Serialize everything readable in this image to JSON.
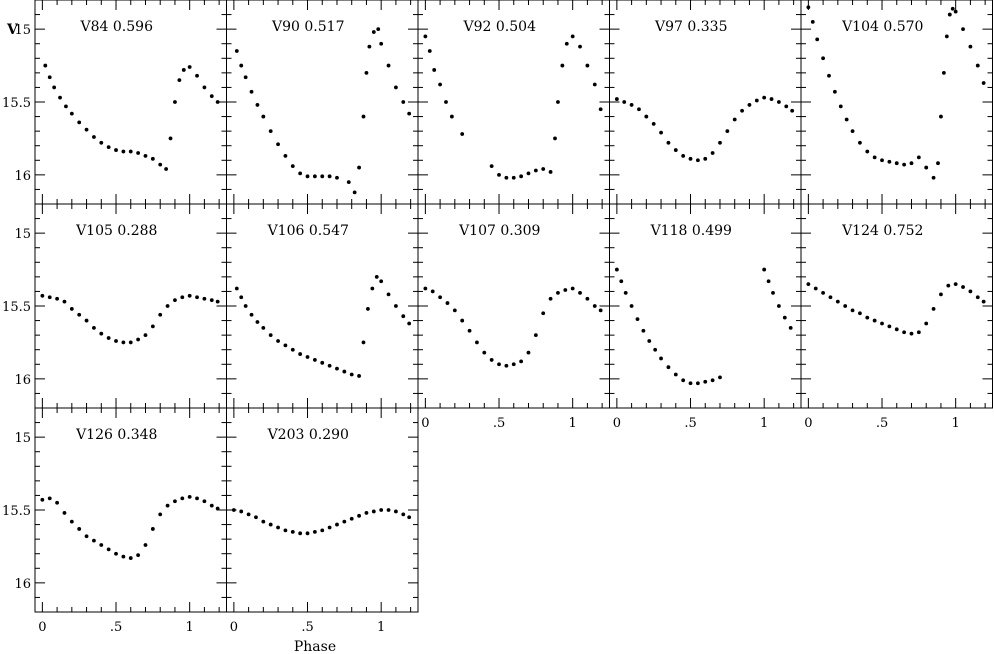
{
  "figure": {
    "ylabel": "V",
    "xlabel": "Phase"
  },
  "axes": {
    "x_ticks": [
      "0",
      ".5",
      "1"
    ],
    "y_ticks": [
      "15",
      "15.5",
      "16"
    ],
    "xlim": [
      -0.05,
      1.25
    ],
    "ylim": [
      16.2,
      14.8
    ],
    "y_inverted": true
  },
  "chart_data": [
    {
      "type": "scatter",
      "title": "V84 0.596",
      "x": [
        0.02,
        0.05,
        0.08,
        0.12,
        0.16,
        0.2,
        0.25,
        0.3,
        0.35,
        0.4,
        0.45,
        0.5,
        0.55,
        0.6,
        0.65,
        0.7,
        0.75,
        0.8,
        0.84,
        0.87,
        0.9,
        0.93,
        0.96,
        1.0,
        1.05,
        1.1,
        1.15,
        1.19
      ],
      "y": [
        15.25,
        15.33,
        15.4,
        15.47,
        15.53,
        15.58,
        15.64,
        15.69,
        15.74,
        15.78,
        15.81,
        15.83,
        15.84,
        15.84,
        15.85,
        15.87,
        15.89,
        15.93,
        15.96,
        15.75,
        15.5,
        15.35,
        15.28,
        15.26,
        15.32,
        15.4,
        15.46,
        15.5
      ]
    },
    {
      "type": "scatter",
      "title": "V90 0.517",
      "x": [
        0.02,
        0.05,
        0.08,
        0.12,
        0.16,
        0.2,
        0.25,
        0.3,
        0.35,
        0.4,
        0.45,
        0.5,
        0.55,
        0.6,
        0.65,
        0.7,
        0.78,
        0.82,
        0.85,
        0.88,
        0.9,
        0.92,
        0.95,
        0.98,
        1.0,
        1.05,
        1.1,
        1.15,
        1.19
      ],
      "y": [
        15.15,
        15.25,
        15.33,
        15.43,
        15.52,
        15.6,
        15.7,
        15.79,
        15.87,
        15.94,
        15.99,
        16.01,
        16.01,
        16.01,
        16.01,
        16.02,
        16.05,
        16.12,
        15.95,
        15.6,
        15.3,
        15.12,
        15.02,
        15.0,
        15.1,
        15.25,
        15.4,
        15.5,
        15.58
      ]
    },
    {
      "type": "scatter",
      "title": "V92 0.504",
      "x": [
        0.0,
        0.03,
        0.06,
        0.1,
        0.14,
        0.18,
        0.25,
        0.45,
        0.5,
        0.55,
        0.6,
        0.65,
        0.7,
        0.75,
        0.8,
        0.85,
        0.88,
        0.9,
        0.93,
        0.96,
        1.0,
        1.05,
        1.1,
        1.15,
        1.19
      ],
      "y": [
        15.05,
        15.15,
        15.28,
        15.38,
        15.5,
        15.6,
        15.72,
        15.94,
        16.0,
        16.02,
        16.02,
        16.01,
        15.99,
        15.97,
        15.96,
        15.98,
        15.75,
        15.5,
        15.25,
        15.1,
        15.05,
        15.12,
        15.25,
        15.38,
        15.55
      ]
    },
    {
      "type": "scatter",
      "title": "V97 0.335",
      "x": [
        0.0,
        0.05,
        0.1,
        0.15,
        0.2,
        0.25,
        0.3,
        0.35,
        0.4,
        0.45,
        0.5,
        0.55,
        0.6,
        0.65,
        0.7,
        0.75,
        0.8,
        0.85,
        0.9,
        0.95,
        1.0,
        1.05,
        1.1,
        1.15,
        1.19
      ],
      "y": [
        15.48,
        15.5,
        15.52,
        15.55,
        15.6,
        15.65,
        15.71,
        15.78,
        15.83,
        15.87,
        15.89,
        15.9,
        15.89,
        15.85,
        15.78,
        15.7,
        15.62,
        15.56,
        15.52,
        15.49,
        15.47,
        15.48,
        15.5,
        15.53,
        15.56
      ]
    },
    {
      "type": "scatter",
      "title": "V104 0.570",
      "x": [
        0.0,
        0.03,
        0.06,
        0.1,
        0.14,
        0.18,
        0.22,
        0.26,
        0.3,
        0.35,
        0.4,
        0.45,
        0.5,
        0.55,
        0.6,
        0.65,
        0.7,
        0.75,
        0.8,
        0.85,
        0.88,
        0.9,
        0.92,
        0.94,
        0.96,
        0.98,
        1.0,
        1.05,
        1.1,
        1.15,
        1.19
      ],
      "y": [
        14.85,
        14.95,
        15.07,
        15.2,
        15.32,
        15.43,
        15.53,
        15.62,
        15.7,
        15.78,
        15.84,
        15.88,
        15.9,
        15.91,
        15.92,
        15.93,
        15.92,
        15.88,
        15.95,
        16.02,
        15.92,
        15.6,
        15.3,
        15.05,
        14.9,
        14.86,
        14.88,
        15.0,
        15.12,
        15.25,
        15.37
      ]
    },
    {
      "type": "scatter",
      "title": "V105 0.288",
      "x": [
        0.0,
        0.05,
        0.1,
        0.15,
        0.2,
        0.25,
        0.3,
        0.35,
        0.4,
        0.45,
        0.5,
        0.55,
        0.6,
        0.65,
        0.7,
        0.75,
        0.8,
        0.85,
        0.9,
        0.95,
        1.0,
        1.05,
        1.1,
        1.15,
        1.19
      ],
      "y": [
        15.43,
        15.44,
        15.45,
        15.47,
        15.52,
        15.56,
        15.6,
        15.65,
        15.69,
        15.72,
        15.74,
        15.75,
        15.75,
        15.73,
        15.7,
        15.64,
        15.56,
        15.5,
        15.46,
        15.44,
        15.43,
        15.44,
        15.45,
        15.46,
        15.47
      ]
    },
    {
      "type": "scatter",
      "title": "V106 0.547",
      "x": [
        0.02,
        0.05,
        0.08,
        0.12,
        0.16,
        0.2,
        0.25,
        0.3,
        0.35,
        0.4,
        0.45,
        0.5,
        0.55,
        0.6,
        0.65,
        0.7,
        0.75,
        0.8,
        0.85,
        0.88,
        0.91,
        0.94,
        0.97,
        1.0,
        1.05,
        1.1,
        1.15,
        1.19
      ],
      "y": [
        15.38,
        15.44,
        15.5,
        15.56,
        15.61,
        15.65,
        15.7,
        15.74,
        15.77,
        15.8,
        15.83,
        15.85,
        15.87,
        15.89,
        15.91,
        15.93,
        15.95,
        15.97,
        15.98,
        15.75,
        15.52,
        15.38,
        15.3,
        15.33,
        15.42,
        15.5,
        15.57,
        15.62
      ]
    },
    {
      "type": "scatter",
      "title": "V107 0.309",
      "x": [
        0.0,
        0.05,
        0.1,
        0.15,
        0.2,
        0.25,
        0.3,
        0.35,
        0.4,
        0.45,
        0.5,
        0.55,
        0.6,
        0.65,
        0.7,
        0.75,
        0.8,
        0.85,
        0.9,
        0.95,
        1.0,
        1.05,
        1.1,
        1.15,
        1.19
      ],
      "y": [
        15.38,
        15.4,
        15.44,
        15.48,
        15.53,
        15.6,
        15.67,
        15.75,
        15.82,
        15.87,
        15.9,
        15.91,
        15.9,
        15.88,
        15.82,
        15.7,
        15.55,
        15.45,
        15.41,
        15.39,
        15.38,
        15.41,
        15.45,
        15.5,
        15.53
      ]
    },
    {
      "type": "scatter",
      "title": "V118 0.499",
      "x": [
        0.0,
        0.03,
        0.06,
        0.1,
        0.14,
        0.18,
        0.22,
        0.26,
        0.3,
        0.35,
        0.4,
        0.45,
        0.5,
        0.55,
        0.6,
        0.65,
        0.7,
        1.0,
        1.03,
        1.06,
        1.1,
        1.14,
        1.18
      ],
      "y": [
        15.25,
        15.33,
        15.41,
        15.5,
        15.59,
        15.67,
        15.74,
        15.8,
        15.86,
        15.92,
        15.97,
        16.01,
        16.03,
        16.03,
        16.02,
        16.01,
        15.99,
        15.25,
        15.33,
        15.41,
        15.5,
        15.58,
        15.65
      ]
    },
    {
      "type": "scatter",
      "title": "V124 0.752",
      "x": [
        0.0,
        0.05,
        0.1,
        0.15,
        0.2,
        0.25,
        0.3,
        0.35,
        0.4,
        0.45,
        0.5,
        0.55,
        0.6,
        0.65,
        0.7,
        0.75,
        0.8,
        0.85,
        0.9,
        0.95,
        1.0,
        1.05,
        1.1,
        1.15,
        1.19
      ],
      "y": [
        15.35,
        15.38,
        15.41,
        15.44,
        15.47,
        15.5,
        15.53,
        15.55,
        15.58,
        15.6,
        15.62,
        15.64,
        15.66,
        15.68,
        15.69,
        15.68,
        15.62,
        15.52,
        15.42,
        15.36,
        15.35,
        15.37,
        15.4,
        15.44,
        15.47
      ]
    },
    {
      "type": "scatter",
      "title": "V126 0.348",
      "x": [
        0.0,
        0.05,
        0.1,
        0.15,
        0.2,
        0.25,
        0.3,
        0.35,
        0.4,
        0.45,
        0.5,
        0.55,
        0.6,
        0.65,
        0.7,
        0.75,
        0.8,
        0.85,
        0.9,
        0.95,
        1.0,
        1.05,
        1.1,
        1.15,
        1.19
      ],
      "y": [
        15.43,
        15.42,
        15.45,
        15.52,
        15.58,
        15.63,
        15.68,
        15.71,
        15.74,
        15.77,
        15.8,
        15.82,
        15.83,
        15.81,
        15.74,
        15.63,
        15.53,
        15.47,
        15.44,
        15.42,
        15.41,
        15.42,
        15.44,
        15.47,
        15.49
      ]
    },
    {
      "type": "scatter",
      "title": "V203 0.290",
      "x": [
        0.0,
        0.05,
        0.1,
        0.15,
        0.2,
        0.25,
        0.3,
        0.35,
        0.4,
        0.45,
        0.5,
        0.55,
        0.6,
        0.65,
        0.7,
        0.75,
        0.8,
        0.85,
        0.9,
        0.95,
        1.0,
        1.05,
        1.1,
        1.15,
        1.19
      ],
      "y": [
        15.5,
        15.51,
        15.53,
        15.55,
        15.58,
        15.6,
        15.62,
        15.64,
        15.65,
        15.66,
        15.66,
        15.65,
        15.64,
        15.62,
        15.6,
        15.58,
        15.56,
        15.54,
        15.52,
        15.51,
        15.5,
        15.5,
        15.51,
        15.53,
        15.55
      ]
    }
  ]
}
